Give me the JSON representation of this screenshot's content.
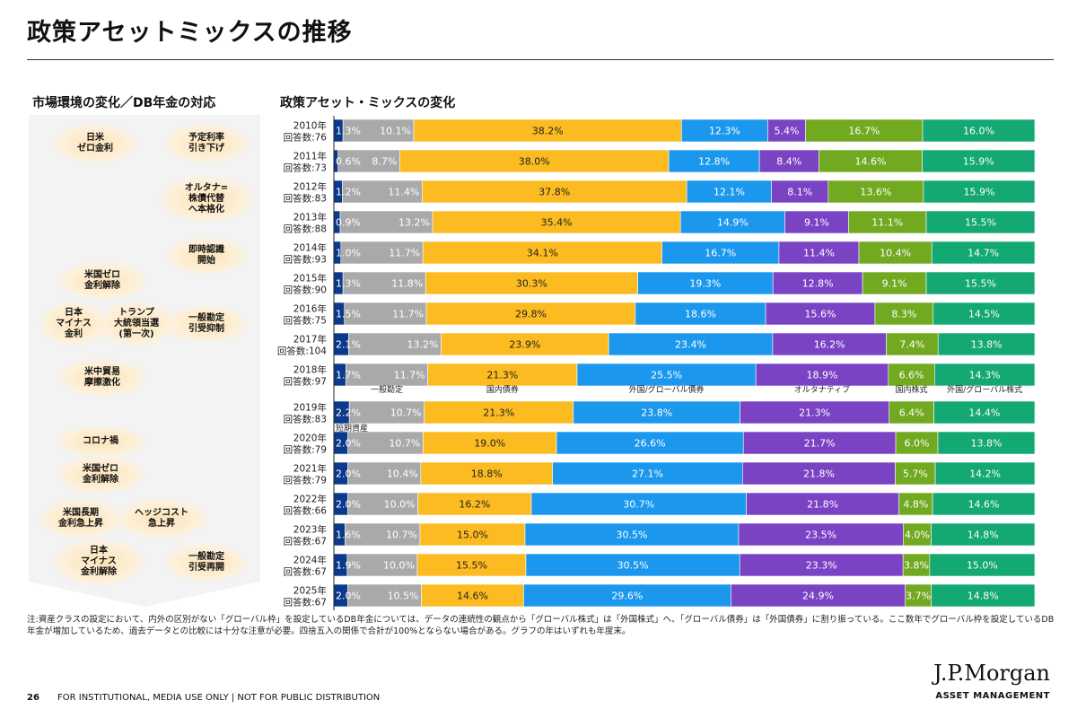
{
  "page": {
    "title": "政策アセットミックスの推移",
    "left_title": "市場環境の変化／DB年金の対応",
    "right_title": "政策アセット・ミックスの変化",
    "footnote": "注:資産クラスの設定において、内外の区別がない「グローバル枠」を設定しているDB年金については、データの連続性の観点から「グローバル株式」は「外国株式」へ、「グローバル債券」は「外国債券」に割り振っている。ここ数年でグローバル枠を設定しているDB年金が増加しているため、過去データとの比較には十分な注意が必要。四捨五入の関係で合計が100%とならない場合がある。グラフの年はいずれも年度末。",
    "page_number": "26",
    "disclaimer": "FOR INSTITUTIONAL, MEDIA USE ONLY | NOT FOR PUBLIC DISTRIBUTION",
    "logo": "J.P.Morgan",
    "logo_sub": "ASSET MANAGEMENT"
  },
  "events": [
    {
      "name": "event-japan-zero-rate",
      "text": "日米\nゼロ金利"
    },
    {
      "name": "event-lower-assumed-rate",
      "text": "予定利率\n引き下げ"
    },
    {
      "name": "event-alternative-shift",
      "text": "オルタナ=\n株債代替\nへ本格化"
    },
    {
      "name": "event-immediate-recognition",
      "text": "即時認識\n開始"
    },
    {
      "name": "event-us-zero-exit",
      "text": "米国ゼロ\n金利解除"
    },
    {
      "name": "event-japan-negative-rate",
      "text": "日本\nマイナス\n金利"
    },
    {
      "name": "event-trump-election",
      "text": "トランプ\n大統領当選\n(第一次)"
    },
    {
      "name": "event-general-account-restrain",
      "text": "一般勘定\n引受抑制"
    },
    {
      "name": "event-us-china-trade",
      "text": "米中貿易\n摩擦激化"
    },
    {
      "name": "event-covid",
      "text": "コロナ禍"
    },
    {
      "name": "event-us-zero-exit-2",
      "text": "米国ゼロ\n金利解除"
    },
    {
      "name": "event-us-long-rate-rise",
      "text": "米国長期\n金利急上昇"
    },
    {
      "name": "event-hedge-cost-rise",
      "text": "ヘッジコスト\n急上昇"
    },
    {
      "name": "event-japan-negative-exit",
      "text": "日本\nマイナス\n金利解除"
    },
    {
      "name": "event-general-account-resume",
      "text": "一般勘定\n引受再開"
    }
  ],
  "chart_data": {
    "type": "bar",
    "orientation": "horizontal-stacked-100",
    "title": "政策アセット・ミックスの変化",
    "series_labels": [
      "短期資産",
      "一般勘定",
      "国内債券",
      "外国/グローバル債券",
      "オルタナティブ",
      "国内株式",
      "外国/グローバル株式"
    ],
    "label_row": [
      "一般勘定",
      "国内債券",
      "外国/グローバル債券",
      "オルタナティブ",
      "国内株式",
      "外国/グローバル株式"
    ],
    "label_row_extra": "短期資産",
    "colors": [
      "#0b3a8c",
      "#a9a9a9",
      "#fbbb21",
      "#1b98ee",
      "#7a43c3",
      "#71a921",
      "#14a872"
    ],
    "label_colors": [
      "#ffffff",
      "#ffffff",
      "#222222",
      "#ffffff",
      "#ffffff",
      "#ffffff",
      "#ffffff"
    ],
    "categories": [
      {
        "year": "2010年",
        "count": "回答数:76",
        "values": [
          1.3,
          10.1,
          38.2,
          12.3,
          5.4,
          16.7,
          16.0
        ],
        "labels": [
          "1.3%",
          "10.1%",
          "38.2%",
          "12.3%",
          "5.4%",
          "16.7%",
          "16.0%"
        ]
      },
      {
        "year": "2011年",
        "count": "回答数:73",
        "values": [
          0.6,
          8.7,
          38.0,
          12.8,
          8.4,
          14.6,
          15.9
        ],
        "labels": [
          "0.6%",
          "8.7%",
          "38.0%",
          "12.8%",
          "8.4%",
          "14.6%",
          "15.9%"
        ]
      },
      {
        "year": "2012年",
        "count": "回答数:83",
        "values": [
          1.2,
          11.4,
          37.8,
          12.1,
          8.1,
          13.6,
          15.9
        ],
        "labels": [
          "1.2%",
          "11.4%",
          "37.8%",
          "12.1%",
          "8.1%",
          "13.6%",
          "15.9%"
        ]
      },
      {
        "year": "2013年",
        "count": "回答数:88",
        "values": [
          0.9,
          13.2,
          35.4,
          14.9,
          9.1,
          11.1,
          15.5
        ],
        "labels": [
          "0.9%",
          "13.2%",
          "35.4%",
          "14.9%",
          "9.1%",
          "11.1%",
          "15.5%"
        ]
      },
      {
        "year": "2014年",
        "count": "回答数:93",
        "values": [
          1.0,
          11.7,
          34.1,
          16.7,
          11.4,
          10.4,
          14.7
        ],
        "labels": [
          "1.0%",
          "11.7%",
          "34.1%",
          "16.7%",
          "11.4%",
          "10.4%",
          "14.7%"
        ]
      },
      {
        "year": "2015年",
        "count": "回答数:90",
        "values": [
          1.3,
          11.8,
          30.3,
          19.3,
          12.8,
          9.1,
          15.5
        ],
        "labels": [
          "1.3%",
          "11.8%",
          "30.3%",
          "19.3%",
          "12.8%",
          "9.1%",
          "15.5%"
        ]
      },
      {
        "year": "2016年",
        "count": "回答数:75",
        "values": [
          1.5,
          11.7,
          29.8,
          18.6,
          15.6,
          8.3,
          14.5
        ],
        "labels": [
          "1.5%",
          "11.7%",
          "29.8%",
          "18.6%",
          "15.6%",
          "8.3%",
          "14.5%"
        ]
      },
      {
        "year": "2017年",
        "count": "回答数:104",
        "values": [
          2.1,
          13.2,
          23.9,
          23.4,
          16.2,
          7.4,
          13.8
        ],
        "labels": [
          "2.1%",
          "13.2%",
          "23.9%",
          "23.4%",
          "16.2%",
          "7.4%",
          "13.8%"
        ]
      },
      {
        "year": "2018年",
        "count": "回答数:97",
        "values": [
          1.7,
          11.7,
          21.3,
          25.5,
          18.9,
          6.6,
          14.3
        ],
        "labels": [
          "1.7%",
          "11.7%",
          "21.3%",
          "25.5%",
          "18.9%",
          "6.6%",
          "14.3%"
        ]
      },
      {
        "year": "2019年",
        "count": "回答数:83",
        "values": [
          2.2,
          10.7,
          21.3,
          23.8,
          21.3,
          6.4,
          14.4
        ],
        "labels": [
          "2.2%",
          "10.7%",
          "21.3%",
          "23.8%",
          "21.3%",
          "6.4%",
          "14.4%"
        ]
      },
      {
        "year": "2020年",
        "count": "回答数:79",
        "values": [
          2.0,
          10.7,
          19.0,
          26.6,
          21.7,
          6.0,
          13.8
        ],
        "labels": [
          "2.0%",
          "10.7%",
          "19.0%",
          "26.6%",
          "21.7%",
          "6.0%",
          "13.8%"
        ]
      },
      {
        "year": "2021年",
        "count": "回答数:79",
        "values": [
          2.0,
          10.4,
          18.8,
          27.1,
          21.8,
          5.7,
          14.2
        ],
        "labels": [
          "2.0%",
          "10.4%",
          "18.8%",
          "27.1%",
          "21.8%",
          "5.7%",
          "14.2%"
        ]
      },
      {
        "year": "2022年",
        "count": "回答数:66",
        "values": [
          2.0,
          10.0,
          16.2,
          30.7,
          21.8,
          4.8,
          14.6
        ],
        "labels": [
          "2.0%",
          "10.0%",
          "16.2%",
          "30.7%",
          "21.8%",
          "4.8%",
          "14.6%"
        ]
      },
      {
        "year": "2023年",
        "count": "回答数:67",
        "values": [
          1.6,
          10.7,
          15.0,
          30.5,
          23.5,
          4.0,
          14.8
        ],
        "labels": [
          "1.6%",
          "10.7%",
          "15.0%",
          "30.5%",
          "23.5%",
          "4.0%",
          "14.8%"
        ]
      },
      {
        "year": "2024年",
        "count": "回答数:67",
        "values": [
          1.9,
          10.0,
          15.5,
          30.5,
          23.3,
          3.8,
          15.0
        ],
        "labels": [
          "1.9%",
          "10.0%",
          "15.5%",
          "30.5%",
          "23.3%",
          "3.8%",
          "15.0%"
        ]
      },
      {
        "year": "2025年",
        "count": "回答数:67",
        "values": [
          2.0,
          10.5,
          14.6,
          29.6,
          24.9,
          3.7,
          14.8
        ],
        "labels": [
          "2.0%",
          "10.5%",
          "14.6%",
          "29.6%",
          "24.9%",
          "3.7%",
          "14.8%"
        ]
      }
    ]
  }
}
